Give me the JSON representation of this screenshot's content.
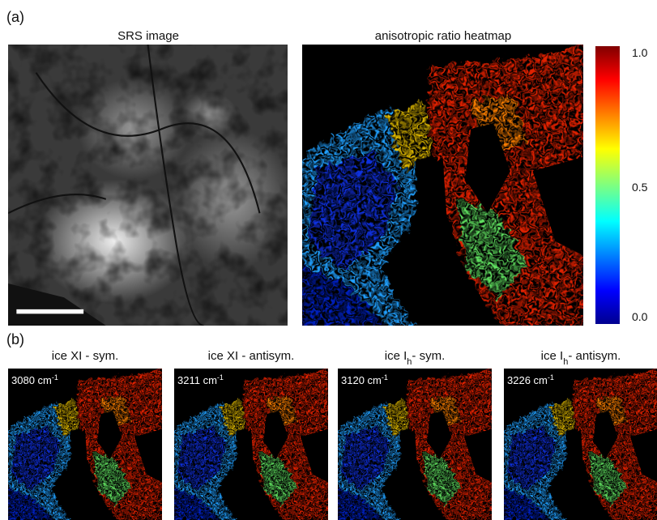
{
  "panel_a": {
    "label": "(a)",
    "srs_title": "SRS image",
    "heatmap_title": "anisotropic ratio heatmap",
    "colorbar_ticks": [
      "1.0",
      "0.5",
      "0.0"
    ]
  },
  "panel_b": {
    "label": "(b)",
    "maps": [
      {
        "title": {
          "prefix": "ice XI - sym.",
          "sub": "",
          "suffix": ""
        },
        "wavenumber": {
          "text": "3080 cm",
          "sup": "-1"
        }
      },
      {
        "title": {
          "prefix": "ice XI - antisym.",
          "sub": "",
          "suffix": ""
        },
        "wavenumber": {
          "text": "3211 cm",
          "sup": "-1"
        }
      },
      {
        "title": {
          "prefix": "ice I",
          "sub": "h",
          "suffix": "- sym."
        },
        "wavenumber": {
          "text": "3120 cm",
          "sup": "-1"
        }
      },
      {
        "title": {
          "prefix": "ice I",
          "sub": "h",
          "suffix": "- antisym."
        },
        "wavenumber": {
          "text": "3226 cm",
          "sup": "-1"
        }
      }
    ]
  }
}
